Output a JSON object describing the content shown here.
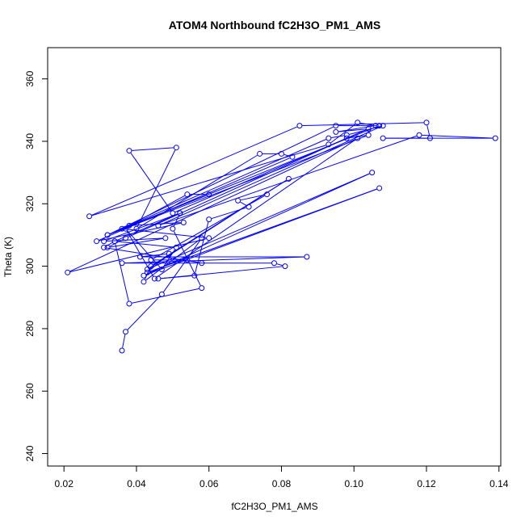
{
  "chart_data": {
    "type": "scatter",
    "title": "ATOM4 Northbound fC2H3O_PM1_AMS",
    "xlabel": "fC2H3O_PM1_AMS",
    "ylabel": "Theta (K)",
    "xlim": [
      0.0155,
      0.1405
    ],
    "ylim": [
      236,
      370
    ],
    "xticks": [
      0.02,
      0.04,
      0.06,
      0.08,
      0.1,
      0.12,
      0.14
    ],
    "xtick_labels": [
      "0.02",
      "0.04",
      "0.06",
      "0.08",
      "0.10",
      "0.12",
      "0.14"
    ],
    "yticks": [
      240,
      260,
      280,
      300,
      320,
      340,
      360
    ],
    "ytick_labels": [
      "240",
      "260",
      "280",
      "300",
      "320",
      "340",
      "360"
    ],
    "grid": false,
    "connected": true,
    "color": "#0000ff",
    "series": [
      {
        "points": [
          [
            0.036,
            273
          ],
          [
            0.037,
            279
          ],
          [
            0.047,
            291
          ],
          [
            0.058,
            309
          ],
          [
            0.042,
            295
          ],
          [
            0.044,
            300
          ],
          [
            0.082,
            328
          ],
          [
            0.043,
            299
          ],
          [
            0.105,
            330
          ],
          [
            0.042,
            297
          ],
          [
            0.107,
            325
          ],
          [
            0.043,
            298
          ],
          [
            0.049,
            304
          ],
          [
            0.041,
            303
          ],
          [
            0.087,
            303
          ],
          [
            0.036,
            301
          ],
          [
            0.078,
            301
          ],
          [
            0.081,
            300
          ],
          [
            0.046,
            296
          ],
          [
            0.056,
            297
          ],
          [
            0.06,
            315
          ],
          [
            0.071,
            319
          ],
          [
            0.068,
            321
          ],
          [
            0.076,
            323
          ],
          [
            0.044,
            302
          ],
          [
            0.054,
            302
          ],
          [
            0.058,
            301
          ],
          [
            0.031,
            306
          ],
          [
            0.034,
            308
          ],
          [
            0.052,
            317
          ],
          [
            0.031,
            308
          ],
          [
            0.048,
            309
          ],
          [
            0.032,
            306
          ],
          [
            0.037,
            309
          ],
          [
            0.098,
            341
          ],
          [
            0.104,
            342
          ],
          [
            0.032,
            310
          ],
          [
            0.095,
            345
          ],
          [
            0.107,
            345
          ],
          [
            0.032,
            310
          ],
          [
            0.093,
            341
          ],
          [
            0.098,
            342
          ],
          [
            0.108,
            345
          ],
          [
            0.046,
            313
          ],
          [
            0.118,
            342
          ],
          [
            0.139,
            341
          ],
          [
            0.108,
            341
          ],
          [
            0.121,
            341
          ],
          [
            0.12,
            346
          ],
          [
            0.085,
            345
          ],
          [
            0.027,
            316
          ],
          [
            0.093,
            339
          ],
          [
            0.101,
            346
          ],
          [
            0.106,
            345
          ],
          [
            0.095,
            343
          ],
          [
            0.104,
            344
          ],
          [
            0.05,
            317
          ],
          [
            0.038,
            337
          ],
          [
            0.051,
            338
          ],
          [
            0.04,
            312
          ],
          [
            0.074,
            336
          ],
          [
            0.08,
            336
          ],
          [
            0.083,
            335
          ],
          [
            0.029,
            308
          ],
          [
            0.053,
            314
          ],
          [
            0.038,
            313
          ],
          [
            0.054,
            323
          ],
          [
            0.06,
            323
          ],
          [
            0.036,
            312
          ],
          [
            0.06,
            309
          ],
          [
            0.021,
            298
          ],
          [
            0.101,
            341
          ],
          [
            0.045,
            296
          ],
          [
            0.037,
            312
          ],
          [
            0.047,
            299
          ],
          [
            0.051,
            306
          ],
          [
            0.034,
            308
          ],
          [
            0.038,
            288
          ],
          [
            0.058,
            293
          ],
          [
            0.05,
            312
          ],
          [
            0.052,
            317
          ]
        ]
      }
    ]
  }
}
